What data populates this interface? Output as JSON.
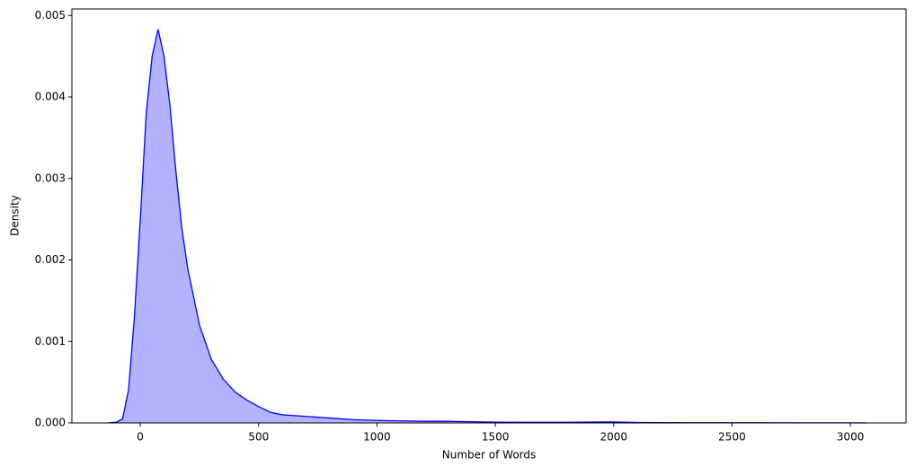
{
  "chart_data": {
    "type": "area",
    "x_label": "Number of Words",
    "y_label": "Density",
    "x": [
      -137,
      -100,
      -75,
      -50,
      -25,
      0,
      25,
      50,
      75,
      100,
      125,
      150,
      175,
      200,
      250,
      300,
      350,
      400,
      450,
      500,
      550,
      600,
      700,
      800,
      900,
      1000,
      1100,
      1200,
      1300,
      1400,
      1500,
      1600,
      1800,
      1950,
      2000,
      2100,
      2300,
      2600,
      3000,
      3070
    ],
    "series": [
      {
        "color": "#0000ff",
        "values": [
          0,
          1e-05,
          5e-05,
          0.0004,
          0.0013,
          0.0025,
          0.0038,
          0.0045,
          0.00483,
          0.0045,
          0.0039,
          0.0031,
          0.0024,
          0.0019,
          0.0012,
          0.00078,
          0.00054,
          0.00038,
          0.00028,
          0.0002,
          0.00013,
          0.0001,
          8e-05,
          6e-05,
          4e-05,
          3e-05,
          2.5e-05,
          2e-05,
          2e-05,
          1.5e-05,
          1e-05,
          8e-06,
          8e-06,
          1.2e-05,
          1.2e-05,
          5e-06,
          3e-06,
          2e-06,
          1e-06,
          0
        ]
      }
    ],
    "xlim": [
      -289,
      3235
    ],
    "ylim": [
      0,
      0.00508
    ],
    "xticks": [
      0,
      500,
      1000,
      1500,
      2000,
      2500,
      3000
    ],
    "yticks": [
      {
        "value": 0,
        "label": "0.000"
      },
      {
        "value": 0.001,
        "label": "0.001"
      },
      {
        "value": 0.002,
        "label": "0.002"
      },
      {
        "value": 0.003,
        "label": "0.003"
      },
      {
        "value": 0.004,
        "label": "0.004"
      },
      {
        "value": 0.005,
        "label": "0.005"
      }
    ],
    "grid": false
  }
}
